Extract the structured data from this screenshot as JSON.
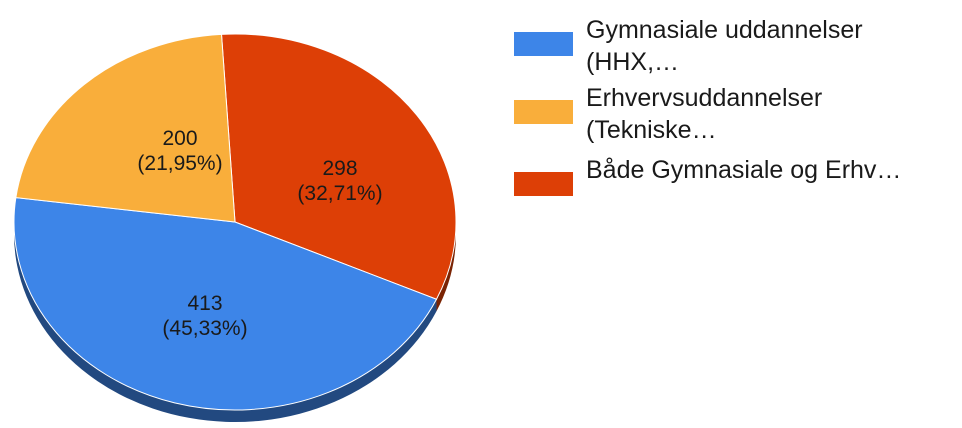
{
  "chart_data": {
    "type": "pie",
    "style": "3d",
    "title": "",
    "slices": [
      {
        "label_lines": [
          "Gymnasiale uddannelser",
          "(HHX,…"
        ],
        "value": 413,
        "percent_text": "(45,33%)",
        "color": "#3d85e8"
      },
      {
        "label_lines": [
          "Erhvervsuddannelser",
          "(Tekniske…"
        ],
        "value": 200,
        "percent_text": "(21,95%)",
        "color": "#f9ae3b"
      },
      {
        "label_lines": [
          "Både Gymnasiale og Erhv…"
        ],
        "value": 298,
        "percent_text": "(32,71%)",
        "color": "#dd3f06"
      }
    ],
    "legend_position": "right"
  }
}
